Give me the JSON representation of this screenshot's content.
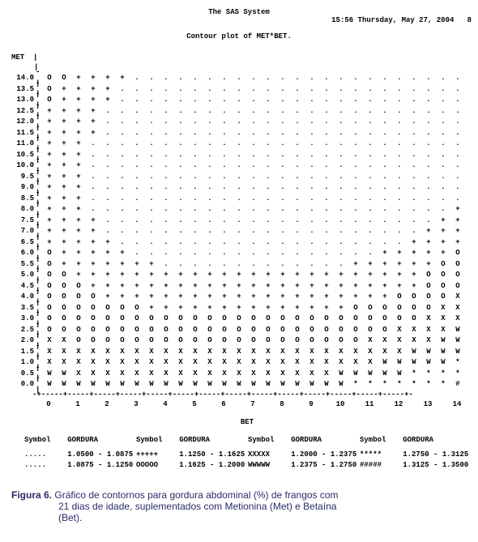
{
  "header": {
    "system_text": "The SAS System",
    "timestamp": "15:56 Thursday, May 27, 2004",
    "page_no": "8",
    "subtitle": "Contour plot of MET*BET."
  },
  "axes": {
    "y_label": "MET",
    "x_label": "BET",
    "y_ticks": [
      "14.0",
      "13.5",
      "13.0",
      "12.5",
      "12.0",
      "11.5",
      "11.0",
      "10.5",
      "10.0",
      "9.5",
      "9.0",
      "8.5",
      "8.0",
      "7.5",
      "7.0",
      "6.5",
      "6.0",
      "5.5",
      "5.0",
      "4.5",
      "4.0",
      "3.5",
      "3.0",
      "2.5",
      "2.0",
      "1.5",
      "1.0",
      "0.5",
      "0.0"
    ],
    "x_ticks": [
      "0",
      "1",
      "2",
      "3",
      "4",
      "5",
      "6",
      "7",
      "8",
      "9",
      "10",
      "11",
      "12",
      "13",
      "14"
    ]
  },
  "chart": {
    "type": "contour-ascii",
    "symbols_palette": [
      ".",
      "+",
      "O",
      "X",
      "W",
      "*",
      "#"
    ],
    "rows": [
      [
        "O",
        "O",
        "+",
        "+",
        "+",
        "+",
        ".",
        ".",
        ".",
        ".",
        ".",
        ".",
        ".",
        ".",
        ".",
        ".",
        ".",
        ".",
        ".",
        ".",
        ".",
        ".",
        ".",
        ".",
        ".",
        ".",
        ".",
        ".",
        "."
      ],
      [
        "O",
        "+",
        "+",
        "+",
        "+",
        ".",
        ".",
        ".",
        ".",
        ".",
        ".",
        ".",
        ".",
        ".",
        ".",
        ".",
        ".",
        ".",
        ".",
        ".",
        ".",
        ".",
        ".",
        ".",
        ".",
        ".",
        ".",
        ".",
        "."
      ],
      [
        "O",
        "+",
        "+",
        "+",
        "+",
        ".",
        ".",
        ".",
        ".",
        ".",
        ".",
        ".",
        ".",
        ".",
        ".",
        ".",
        ".",
        ".",
        ".",
        ".",
        ".",
        ".",
        ".",
        ".",
        ".",
        ".",
        ".",
        ".",
        "."
      ],
      [
        "+",
        "+",
        "+",
        "+",
        ".",
        ".",
        ".",
        ".",
        ".",
        ".",
        ".",
        ".",
        ".",
        ".",
        ".",
        ".",
        ".",
        ".",
        ".",
        ".",
        ".",
        ".",
        ".",
        ".",
        ".",
        ".",
        ".",
        ".",
        "."
      ],
      [
        "+",
        "+",
        "+",
        "+",
        ".",
        ".",
        ".",
        ".",
        ".",
        ".",
        ".",
        ".",
        ".",
        ".",
        ".",
        ".",
        ".",
        ".",
        ".",
        ".",
        ".",
        ".",
        ".",
        ".",
        ".",
        ".",
        ".",
        ".",
        "."
      ],
      [
        "+",
        "+",
        "+",
        "+",
        ".",
        ".",
        ".",
        ".",
        ".",
        ".",
        ".",
        ".",
        ".",
        ".",
        ".",
        ".",
        ".",
        ".",
        ".",
        ".",
        ".",
        ".",
        ".",
        ".",
        ".",
        ".",
        ".",
        ".",
        "."
      ],
      [
        "+",
        "+",
        "+",
        ".",
        ".",
        ".",
        ".",
        ".",
        ".",
        ".",
        ".",
        ".",
        ".",
        ".",
        ".",
        ".",
        ".",
        ".",
        ".",
        ".",
        ".",
        ".",
        ".",
        ".",
        ".",
        ".",
        ".",
        ".",
        "."
      ],
      [
        "+",
        "+",
        "+",
        ".",
        ".",
        ".",
        ".",
        ".",
        ".",
        ".",
        ".",
        ".",
        ".",
        ".",
        ".",
        ".",
        ".",
        ".",
        ".",
        ".",
        ".",
        ".",
        ".",
        ".",
        ".",
        ".",
        ".",
        ".",
        "."
      ],
      [
        "+",
        "+",
        "+",
        ".",
        ".",
        ".",
        ".",
        ".",
        ".",
        ".",
        ".",
        ".",
        ".",
        ".",
        ".",
        ".",
        ".",
        ".",
        ".",
        ".",
        ".",
        ".",
        ".",
        ".",
        ".",
        ".",
        ".",
        ".",
        "."
      ],
      [
        "+",
        "+",
        "+",
        ".",
        ".",
        ".",
        ".",
        ".",
        ".",
        ".",
        ".",
        ".",
        ".",
        ".",
        ".",
        ".",
        ".",
        ".",
        ".",
        ".",
        ".",
        ".",
        ".",
        ".",
        ".",
        ".",
        ".",
        ".",
        "."
      ],
      [
        "+",
        "+",
        "+",
        ".",
        ".",
        ".",
        ".",
        ".",
        ".",
        ".",
        ".",
        ".",
        ".",
        ".",
        ".",
        ".",
        ".",
        ".",
        ".",
        ".",
        ".",
        ".",
        ".",
        ".",
        ".",
        ".",
        ".",
        ".",
        "."
      ],
      [
        "+",
        "+",
        "+",
        ".",
        ".",
        ".",
        ".",
        ".",
        ".",
        ".",
        ".",
        ".",
        ".",
        ".",
        ".",
        ".",
        ".",
        ".",
        ".",
        ".",
        ".",
        ".",
        ".",
        ".",
        ".",
        ".",
        ".",
        ".",
        "."
      ],
      [
        "+",
        "+",
        "+",
        ".",
        ".",
        ".",
        ".",
        ".",
        ".",
        ".",
        ".",
        ".",
        ".",
        ".",
        ".",
        ".",
        ".",
        ".",
        ".",
        ".",
        ".",
        ".",
        ".",
        ".",
        ".",
        ".",
        ".",
        ".",
        "+"
      ],
      [
        "+",
        "+",
        "+",
        "+",
        ".",
        ".",
        ".",
        ".",
        ".",
        ".",
        ".",
        ".",
        ".",
        ".",
        ".",
        ".",
        ".",
        ".",
        ".",
        ".",
        ".",
        ".",
        ".",
        ".",
        ".",
        ".",
        ".",
        "+",
        "+"
      ],
      [
        "+",
        "+",
        "+",
        "+",
        ".",
        ".",
        ".",
        ".",
        ".",
        ".",
        ".",
        ".",
        ".",
        ".",
        ".",
        ".",
        ".",
        ".",
        ".",
        ".",
        ".",
        ".",
        ".",
        ".",
        ".",
        ".",
        "+",
        "+",
        "+"
      ],
      [
        "+",
        "+",
        "+",
        "+",
        "+",
        ".",
        ".",
        ".",
        ".",
        ".",
        ".",
        ".",
        ".",
        ".",
        ".",
        ".",
        ".",
        ".",
        ".",
        ".",
        ".",
        ".",
        ".",
        ".",
        ".",
        "+",
        "+",
        "+",
        "+"
      ],
      [
        "O",
        "+",
        "+",
        "+",
        "+",
        "+",
        ".",
        ".",
        ".",
        ".",
        ".",
        ".",
        ".",
        ".",
        ".",
        ".",
        ".",
        ".",
        ".",
        ".",
        ".",
        ".",
        ".",
        "+",
        "+",
        "+",
        "+",
        "+",
        "O"
      ],
      [
        "O",
        "+",
        "+",
        "+",
        "+",
        "+",
        "+",
        "+",
        ".",
        ".",
        ".",
        ".",
        ".",
        ".",
        ".",
        ".",
        ".",
        ".",
        ".",
        ".",
        ".",
        "+",
        "+",
        "+",
        "+",
        "+",
        "+",
        "O",
        "O"
      ],
      [
        "O",
        "O",
        "+",
        "+",
        "+",
        "+",
        "+",
        "+",
        "+",
        "+",
        "+",
        "+",
        "+",
        "+",
        "+",
        "+",
        "+",
        "+",
        "+",
        "+",
        "+",
        "+",
        "+",
        "+",
        "+",
        "+",
        "O",
        "O",
        "O"
      ],
      [
        "O",
        "O",
        "O",
        "+",
        "+",
        "+",
        "+",
        "+",
        "+",
        "+",
        "+",
        "+",
        "+",
        "+",
        "+",
        "+",
        "+",
        "+",
        "+",
        "+",
        "+",
        "+",
        "+",
        "+",
        "+",
        "+",
        "O",
        "O",
        "O"
      ],
      [
        "O",
        "O",
        "O",
        "O",
        "+",
        "+",
        "+",
        "+",
        "+",
        "+",
        "+",
        "+",
        "+",
        "+",
        "+",
        "+",
        "+",
        "+",
        "+",
        "+",
        "+",
        "+",
        "+",
        "+",
        "O",
        "O",
        "O",
        "O",
        "X"
      ],
      [
        "O",
        "O",
        "O",
        "O",
        "O",
        "O",
        "O",
        "+",
        "+",
        "+",
        "+",
        "+",
        "+",
        "+",
        "+",
        "+",
        "+",
        "+",
        "+",
        "+",
        "+",
        "O",
        "O",
        "O",
        "O",
        "O",
        "O",
        "X",
        "X"
      ],
      [
        "O",
        "O",
        "O",
        "O",
        "O",
        "O",
        "O",
        "O",
        "O",
        "O",
        "O",
        "O",
        "O",
        "O",
        "O",
        "O",
        "O",
        "O",
        "O",
        "O",
        "O",
        "O",
        "O",
        "O",
        "O",
        "O",
        "X",
        "X",
        "X"
      ],
      [
        "O",
        "O",
        "O",
        "O",
        "O",
        "O",
        "O",
        "O",
        "O",
        "O",
        "O",
        "O",
        "O",
        "O",
        "O",
        "O",
        "O",
        "O",
        "O",
        "O",
        "O",
        "O",
        "O",
        "O",
        "X",
        "X",
        "X",
        "X",
        "W"
      ],
      [
        "X",
        "X",
        "O",
        "O",
        "O",
        "O",
        "O",
        "O",
        "O",
        "O",
        "O",
        "O",
        "O",
        "O",
        "O",
        "O",
        "O",
        "O",
        "O",
        "O",
        "O",
        "O",
        "X",
        "X",
        "X",
        "X",
        "X",
        "W",
        "W"
      ],
      [
        "X",
        "X",
        "X",
        "X",
        "X",
        "X",
        "X",
        "X",
        "X",
        "X",
        "X",
        "X",
        "X",
        "X",
        "X",
        "X",
        "X",
        "X",
        "X",
        "X",
        "X",
        "X",
        "X",
        "X",
        "X",
        "W",
        "W",
        "W",
        "W"
      ],
      [
        "X",
        "X",
        "X",
        "X",
        "X",
        "X",
        "X",
        "X",
        "X",
        "X",
        "X",
        "X",
        "X",
        "X",
        "X",
        "X",
        "X",
        "X",
        "X",
        "X",
        "X",
        "X",
        "X",
        "W",
        "W",
        "W",
        "W",
        "W",
        "*"
      ],
      [
        "W",
        "W",
        "X",
        "X",
        "X",
        "X",
        "X",
        "X",
        "X",
        "X",
        "X",
        "X",
        "X",
        "X",
        "X",
        "X",
        "X",
        "X",
        "X",
        "X",
        "W",
        "W",
        "W",
        "W",
        "W",
        "*",
        "*",
        "*",
        "*"
      ],
      [
        "W",
        "W",
        "W",
        "W",
        "W",
        "W",
        "W",
        "W",
        "W",
        "W",
        "W",
        "W",
        "W",
        "W",
        "W",
        "W",
        "W",
        "W",
        "W",
        "W",
        "W",
        "*",
        "*",
        "*",
        "*",
        "*",
        "*",
        "*",
        "#"
      ]
    ],
    "background_color": "#ffffff",
    "text_color": "#000000",
    "font_family": "Courier New",
    "font_size_pt": 7
  },
  "legend": {
    "header_symbol": "Symbol",
    "header_value": "GORDURA",
    "rows": [
      [
        {
          "sym": ".....",
          "rng": "1.0500 - 1.0875"
        },
        {
          "sym": "+++++",
          "rng": "1.1250 - 1.1625"
        },
        {
          "sym": "XXXXX",
          "rng": "1.2000 - 1.2375"
        },
        {
          "sym": "*****",
          "rng": "1.2750 - 1.3125"
        }
      ],
      [
        {
          "sym": ".....",
          "rng": "1.0875 - 1.1250"
        },
        {
          "sym": "OOOOO",
          "rng": "1.1625 - 1.2000"
        },
        {
          "sym": "WWWWW",
          "rng": "1.2375 - 1.2750"
        },
        {
          "sym": "#####",
          "rng": "1.3125 - 1.3500"
        }
      ]
    ]
  },
  "caption": {
    "fig_label": "Figura 6.",
    "line1": "Gráfico de contornos para gordura abdominal (%) de frangos com",
    "line2": "21 dias de idade, suplementados com Metionina (Met) e Betaína",
    "line3": "(Bet).",
    "color": "#2b2b6b",
    "font_family": "Arial",
    "font_size_pt": 9
  }
}
